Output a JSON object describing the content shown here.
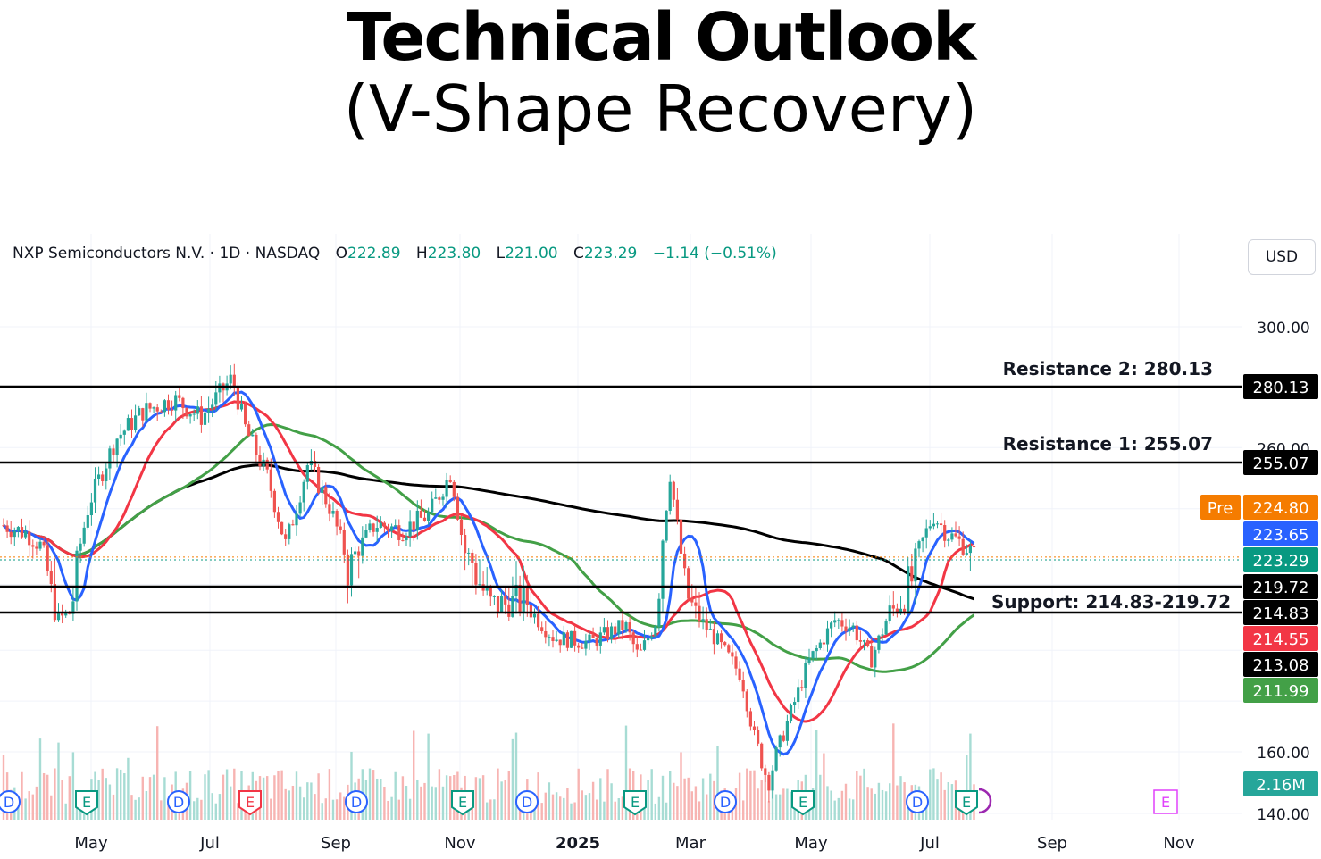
{
  "title": "Technical Outlook",
  "subtitle": "(V-Shape Recovery)",
  "header": {
    "symbol": "NXP Semiconductors N.V. · 1D · NASDAQ",
    "open_label": "O",
    "open": "222.89",
    "high_label": "H",
    "high": "223.80",
    "low_label": "L",
    "low": "221.00",
    "close_label": "C",
    "close": "223.29",
    "change": "−1.14 (−0.51%)"
  },
  "currency": "USD",
  "chart_data": {
    "type": "candlestick",
    "y_ticks": [
      "300.00",
      "260.00",
      "160.00",
      "140.00"
    ],
    "x_ticks": [
      "May",
      "Jul",
      "Sep",
      "Nov",
      "2025",
      "Mar",
      "May",
      "Jul",
      "Sep",
      "Nov"
    ],
    "levels": [
      {
        "label": "Resistance 2: 280.13",
        "value": 280.13
      },
      {
        "label": "Resistance 1: 255.07",
        "value": 255.07
      },
      {
        "label": "Support: 214.83-219.72",
        "low": 214.83,
        "high": 219.72
      }
    ],
    "price_tags": [
      {
        "text": "280.13",
        "value": 280.13,
        "color": "#000000"
      },
      {
        "text": "255.07",
        "value": 255.07,
        "color": "#000000"
      },
      {
        "text": "224.80",
        "value": 224.8,
        "color": "#f57c00",
        "prefix": "Pre"
      },
      {
        "text": "223.65",
        "value": 223.65,
        "color": "#2962ff"
      },
      {
        "text": "223.29",
        "value": 223.29,
        "color": "#089981"
      },
      {
        "text": "219.72",
        "value": 219.72,
        "color": "#000000"
      },
      {
        "text": "214.83",
        "value": 214.83,
        "color": "#000000"
      },
      {
        "text": "214.55",
        "value": 214.55,
        "color": "#f23645"
      },
      {
        "text": "213.08",
        "value": 213.08,
        "color": "#000000"
      },
      {
        "text": "211.99",
        "value": 211.99,
        "color": "#43a047"
      }
    ],
    "volume_tag": {
      "text": "2.16M",
      "color": "#26a69a"
    },
    "moving_averages": [
      {
        "color": "#2962ff",
        "last": 223.65
      },
      {
        "color": "#f23645",
        "last": 214.55
      },
      {
        "color": "#43a047",
        "last": 211.99
      },
      {
        "color": "#000000",
        "last": 213.08
      }
    ],
    "events": [
      "D",
      "E",
      "D",
      "E",
      "D",
      "E",
      "D",
      "E",
      "D",
      "E",
      "D",
      "E",
      "E"
    ],
    "colors": {
      "up": "#26a69a",
      "down": "#ef5350",
      "grid": "#f0f3fa"
    }
  }
}
